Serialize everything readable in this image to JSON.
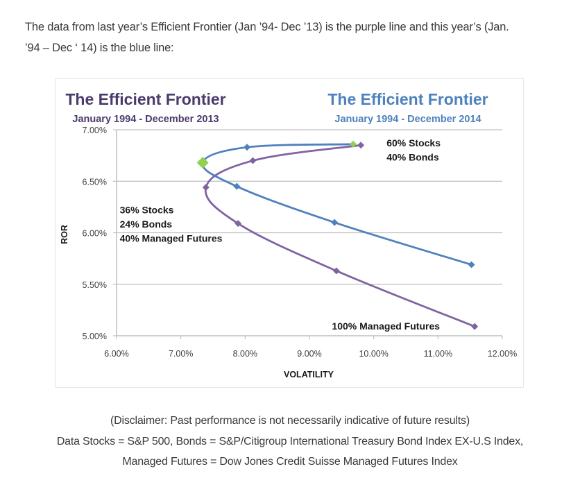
{
  "intro": {
    "line1": "The data from last year’s Efficient Frontier (Jan ’94- Dec ’13) is the purple line and this year’s (Jan.",
    "line2": "’94 – Dec ‘ 14) is the blue line:"
  },
  "footer": {
    "line1": "(Disclaimer: Past performance is not necessarily indicative of future results)",
    "line2": "Data Stocks = S&P 500, Bonds = S&P/Citigroup International Treasury Bond Index EX-U.S Index,",
    "line3": "Managed Futures = Dow Jones Credit Suisse Managed Futures Index"
  },
  "chart_data": {
    "type": "line",
    "titles": [
      {
        "title": "The Efficient Frontier",
        "subtitle": "January 1994 - December 2013",
        "color": "#4b3b6b"
      },
      {
        "title": "The Efficient Frontier",
        "subtitle": "January 1994 - December 2014",
        "color": "#4f81bd"
      }
    ],
    "xlabel": "VOLATILITY",
    "ylabel": "ROR",
    "xlim": [
      6.0,
      12.0
    ],
    "ylim": [
      5.0,
      7.0
    ],
    "x_ticks": [
      "6.00%",
      "7.00%",
      "8.00%",
      "9.00%",
      "10.00%",
      "11.00%",
      "12.00%"
    ],
    "y_ticks": [
      "7.00%",
      "6.50%",
      "6.00%",
      "5.50%",
      "5.00%"
    ],
    "x_tick_values": [
      6,
      7,
      8,
      9,
      10,
      11,
      12
    ],
    "y_tick_values": [
      7.0,
      6.5,
      6.0,
      5.5,
      5.0
    ],
    "grid": "horizontal",
    "series": [
      {
        "name": "January 1994 - December 2013",
        "color": "#8064a2",
        "x": [
          9.8,
          8.12,
          7.39,
          7.89,
          9.42,
          11.57
        ],
        "y": [
          6.85,
          6.7,
          6.44,
          6.09,
          5.63,
          5.09
        ]
      },
      {
        "name": "January 1994 - December 2014",
        "color": "#4f81bd",
        "x": [
          9.68,
          8.03,
          7.34,
          7.87,
          9.39,
          11.52
        ],
        "y": [
          6.86,
          6.83,
          6.68,
          6.45,
          6.1,
          5.69
        ],
        "highlight_color": "#92d050",
        "highlight_indices": [
          0,
          2
        ]
      }
    ],
    "annotations": [
      {
        "lines": [
          "60% Stocks",
          "40% Bonds"
        ],
        "x": 10.2,
        "y": 6.84
      },
      {
        "lines": [
          "36% Stocks",
          "24% Bonds",
          "40% Managed Futures"
        ],
        "x": 6.05,
        "y": 6.19
      },
      {
        "lines": [
          "100% Managed Futures"
        ],
        "x": 9.35,
        "y": 5.06
      }
    ]
  }
}
